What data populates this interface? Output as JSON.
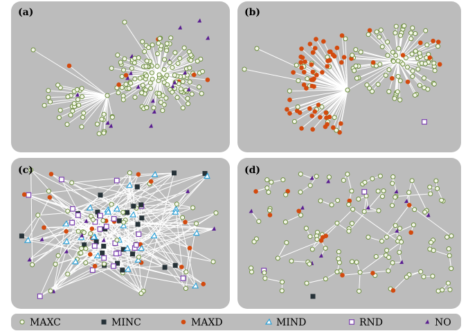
{
  "panels": [
    {
      "label": "(a)"
    },
    {
      "label": "(b)"
    },
    {
      "label": "(c)"
    },
    {
      "label": "(d)"
    }
  ],
  "legend": [
    {
      "key": "maxc",
      "label": "MAXC",
      "marker": "circle-hollow",
      "color": "#6a8c3a"
    },
    {
      "key": "minc",
      "label": "MINC",
      "marker": "square-filled",
      "color": "#263238"
    },
    {
      "key": "maxd",
      "label": "MAXD",
      "marker": "circle-filled",
      "color": "#d34a0e"
    },
    {
      "key": "mind",
      "label": "MIND",
      "marker": "triangle-hollow",
      "color": "#2aa0d8"
    },
    {
      "key": "rnd",
      "label": "RND",
      "marker": "square-hollow",
      "color": "#7b3fb0"
    },
    {
      "key": "no",
      "label": "NO",
      "marker": "triangle-filled",
      "color": "#5a1e91"
    }
  ],
  "colors": {
    "panel_background": "#bcbcbc",
    "edge": "#ffffff",
    "node_fill_light": "#f4f7ea"
  }
}
